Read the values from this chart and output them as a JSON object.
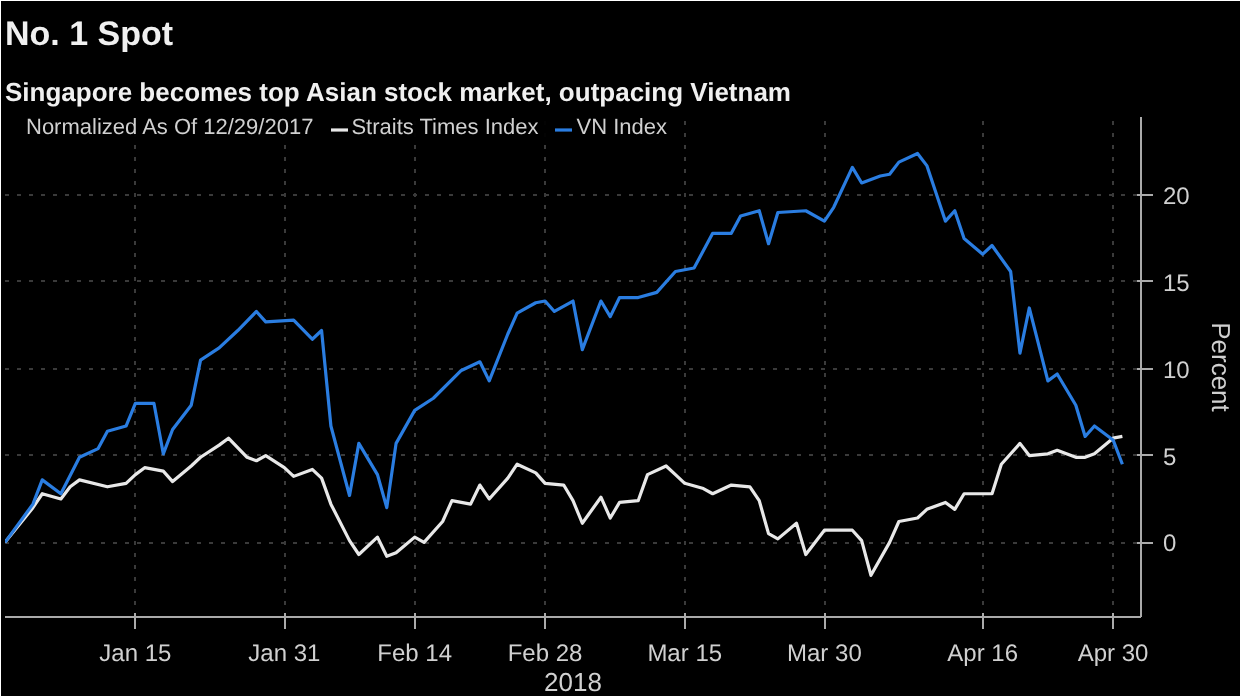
{
  "chart_data": {
    "type": "line",
    "title": "No. 1 Spot",
    "subtitle": "Singapore becomes top Asian stock market, outpacing Vietnam",
    "legend_title": "Normalized As Of 12/29/2017",
    "ylabel": "Percent",
    "xlabel": "2018",
    "xlim": [
      "2018-01-01",
      "2018-05-03"
    ],
    "xticks": [
      {
        "value": "2018-01-15",
        "label": "Jan 15"
      },
      {
        "value": "2018-01-31",
        "label": "Jan 31"
      },
      {
        "value": "2018-02-14",
        "label": "Feb 14"
      },
      {
        "value": "2018-02-28",
        "label": "Feb 28"
      },
      {
        "value": "2018-03-15",
        "label": "Mar 15"
      },
      {
        "value": "2018-03-30",
        "label": "Mar 30"
      },
      {
        "value": "2018-04-16",
        "label": "Apr 16"
      },
      {
        "value": "2018-04-30",
        "label": "Apr 30"
      }
    ],
    "ylim": [
      -4.3,
      24.5
    ],
    "yticks": [
      0,
      5,
      10,
      15,
      20
    ],
    "grid": true,
    "legend": "top left",
    "series": [
      {
        "name": "Straits Times Index",
        "color": "#e8e8e8",
        "x": [
          "2018-01-01",
          "2018-01-04",
          "2018-01-05",
          "2018-01-07",
          "2018-01-08",
          "2018-01-09",
          "2018-01-12",
          "2018-01-14",
          "2018-01-15",
          "2018-01-16",
          "2018-01-18",
          "2018-01-19",
          "2018-01-21",
          "2018-01-22",
          "2018-01-24",
          "2018-01-25",
          "2018-01-27",
          "2018-01-28",
          "2018-01-29",
          "2018-01-31",
          "2018-02-01",
          "2018-02-03",
          "2018-02-04",
          "2018-02-05",
          "2018-02-07",
          "2018-02-08",
          "2018-02-10",
          "2018-02-11",
          "2018-02-12",
          "2018-02-14",
          "2018-02-15",
          "2018-02-17",
          "2018-02-18",
          "2018-02-20",
          "2018-02-21",
          "2018-02-22",
          "2018-02-24",
          "2018-02-25",
          "2018-02-27",
          "2018-02-28",
          "2018-03-02",
          "2018-03-03",
          "2018-03-04",
          "2018-03-06",
          "2018-03-07",
          "2018-03-08",
          "2018-03-10",
          "2018-03-11",
          "2018-03-13",
          "2018-03-14",
          "2018-03-15",
          "2018-03-17",
          "2018-03-18",
          "2018-03-20",
          "2018-03-22",
          "2018-03-23",
          "2018-03-24",
          "2018-03-25",
          "2018-03-27",
          "2018-03-28",
          "2018-03-30",
          "2018-03-31",
          "2018-04-02",
          "2018-04-03",
          "2018-04-04",
          "2018-04-06",
          "2018-04-07",
          "2018-04-09",
          "2018-04-10",
          "2018-04-12",
          "2018-04-13",
          "2018-04-14",
          "2018-04-16",
          "2018-04-17",
          "2018-04-18",
          "2018-04-20",
          "2018-04-21",
          "2018-04-23",
          "2018-04-24",
          "2018-04-26",
          "2018-04-27",
          "2018-04-28",
          "2018-04-30",
          "2018-05-01"
        ],
        "values": [
          0,
          2.0,
          2.8,
          2.5,
          3.2,
          3.6,
          3.2,
          3.4,
          3.9,
          4.3,
          4.1,
          3.5,
          4.4,
          4.9,
          5.6,
          6.0,
          4.9,
          4.7,
          5.0,
          4.3,
          3.8,
          4.2,
          3.7,
          2.2,
          0.1,
          -0.7,
          0.3,
          -0.8,
          -0.6,
          0.3,
          0,
          1.2,
          2.4,
          2.2,
          3.3,
          2.5,
          3.7,
          4.5,
          4.0,
          3.4,
          3.3,
          2.4,
          1.1,
          2.6,
          1.4,
          2.3,
          2.4,
          3.9,
          4.4,
          3.9,
          3.4,
          3.1,
          2.8,
          3.3,
          3.2,
          2.4,
          0.5,
          0.2,
          1.1,
          -0.7,
          0.7,
          0.7,
          0.7,
          0.1,
          -1.9,
          0,
          1.2,
          1.4,
          1.9,
          2.3,
          1.9,
          2.8,
          2.8,
          2.8,
          4.5,
          5.7,
          5.0,
          5.1,
          5.3,
          4.9,
          4.9,
          5.1,
          6.0,
          6.1
        ]
      },
      {
        "name": "VN Index",
        "color": "#2a7de1",
        "x": [
          "2018-01-01",
          "2018-01-04",
          "2018-01-05",
          "2018-01-07",
          "2018-01-09",
          "2018-01-11",
          "2018-01-12",
          "2018-01-14",
          "2018-01-15",
          "2018-01-17",
          "2018-01-18",
          "2018-01-19",
          "2018-01-21",
          "2018-01-22",
          "2018-01-24",
          "2018-01-26",
          "2018-01-28",
          "2018-01-29",
          "2018-02-01",
          "2018-02-03",
          "2018-02-04",
          "2018-02-05",
          "2018-02-07",
          "2018-02-08",
          "2018-02-10",
          "2018-02-11",
          "2018-02-12",
          "2018-02-14",
          "2018-02-16",
          "2018-02-19",
          "2018-02-21",
          "2018-02-22",
          "2018-02-24",
          "2018-02-25",
          "2018-02-27",
          "2018-02-28",
          "2018-03-01",
          "2018-03-03",
          "2018-03-04",
          "2018-03-06",
          "2018-03-07",
          "2018-03-08",
          "2018-03-10",
          "2018-03-12",
          "2018-03-14",
          "2018-03-16",
          "2018-03-18",
          "2018-03-20",
          "2018-03-21",
          "2018-03-23",
          "2018-03-24",
          "2018-03-25",
          "2018-03-28",
          "2018-03-30",
          "2018-03-31",
          "2018-04-02",
          "2018-04-03",
          "2018-04-05",
          "2018-04-06",
          "2018-04-07",
          "2018-04-09",
          "2018-04-10",
          "2018-04-12",
          "2018-04-13",
          "2018-04-14",
          "2018-04-16",
          "2018-04-17",
          "2018-04-19",
          "2018-04-20",
          "2018-04-21",
          "2018-04-23",
          "2018-04-24",
          "2018-04-26",
          "2018-04-27",
          "2018-04-28",
          "2018-04-30",
          "2018-05-01"
        ],
        "values": [
          0,
          2.2,
          3.6,
          2.8,
          4.9,
          5.4,
          6.4,
          6.7,
          8.0,
          8.0,
          5.1,
          6.5,
          7.9,
          10.5,
          11.2,
          12.2,
          13.3,
          12.7,
          12.8,
          11.7,
          12.2,
          6.7,
          2.7,
          5.7,
          3.9,
          2.0,
          5.7,
          7.6,
          8.3,
          9.9,
          10.4,
          9.3,
          12.0,
          13.2,
          13.8,
          13.9,
          13.3,
          13.9,
          11.1,
          13.9,
          13.0,
          14.1,
          14.1,
          14.4,
          15.6,
          15.8,
          17.8,
          17.8,
          18.8,
          19.1,
          17.2,
          19.0,
          19.1,
          18.5,
          19.3,
          21.6,
          20.7,
          21.1,
          21.2,
          21.9,
          22.4,
          21.7,
          18.5,
          19.1,
          17.5,
          16.6,
          17.1,
          15.6,
          10.9,
          13.5,
          9.3,
          9.7,
          7.9,
          6.1,
          6.7,
          5.9,
          4.5
        ]
      }
    ]
  }
}
